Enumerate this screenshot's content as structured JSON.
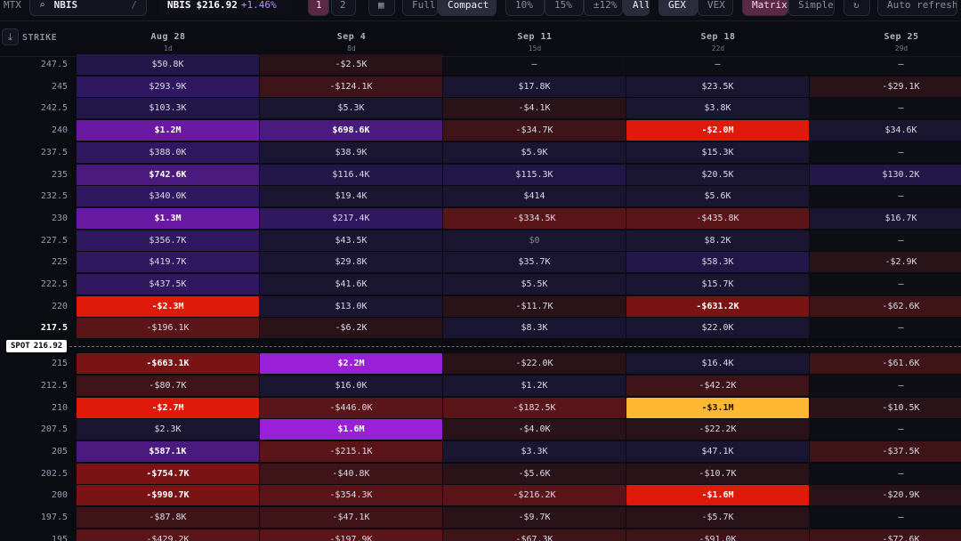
{
  "toolbar": {
    "left_label": "MTX",
    "search_value": "NBIS",
    "search_shortcut": "/",
    "ticker": "NBIS",
    "price": "$216.92",
    "change": "+1.46%",
    "page_buttons": [
      "1",
      "2"
    ],
    "view_modes": [
      "Full",
      "Compact"
    ],
    "active_view": "Compact",
    "range_options": [
      "10%",
      "15%",
      "±12%",
      "All"
    ],
    "active_range": "All",
    "metric_options": [
      "GEX",
      "VEX"
    ],
    "active_metric": "GEX",
    "display_options": [
      "Matrix",
      "Simple"
    ],
    "active_display": "Matrix",
    "auto_refresh_label": "Auto refresh"
  },
  "header": {
    "strike_label": "STRIKE",
    "expiries": [
      {
        "date": "Aug 28",
        "dte": "1d"
      },
      {
        "date": "Sep 4",
        "dte": "8d"
      },
      {
        "date": "Sep 11",
        "dte": "15d"
      },
      {
        "date": "Sep 18",
        "dte": "22d"
      },
      {
        "date": "Sep 25",
        "dte": "29d"
      }
    ]
  },
  "spot": {
    "label": "SPOT",
    "value": "216.92"
  },
  "colors": {
    "bg": "#0b0b12",
    "positive": "#8a2be2",
    "negative": "#e01a0a",
    "extreme_negative": "#ffb833"
  },
  "matrix": {
    "rows": [
      {
        "strike": "247.5",
        "cells": [
          "$50.8K",
          "-$2.5K",
          "—",
          "—",
          "—"
        ]
      },
      {
        "strike": "245",
        "cells": [
          "$293.9K",
          "-$124.1K",
          "$17.8K",
          "$23.5K",
          "-$29.1K"
        ]
      },
      {
        "strike": "242.5",
        "cells": [
          "$103.3K",
          "$5.3K",
          "-$4.1K",
          "$3.8K",
          "—"
        ]
      },
      {
        "strike": "240",
        "cells": [
          "$1.2M",
          "$698.6K",
          "-$34.7K",
          "-$2.0M",
          "$34.6K"
        ]
      },
      {
        "strike": "237.5",
        "cells": [
          "$388.0K",
          "$38.9K",
          "$5.9K",
          "$15.3K",
          "—"
        ]
      },
      {
        "strike": "235",
        "cells": [
          "$742.6K",
          "$116.4K",
          "$115.3K",
          "$20.5K",
          "$130.2K"
        ]
      },
      {
        "strike": "232.5",
        "cells": [
          "$340.0K",
          "$19.4K",
          "$414",
          "$5.6K",
          "—"
        ]
      },
      {
        "strike": "230",
        "cells": [
          "$1.3M",
          "$217.4K",
          "-$334.5K",
          "-$435.8K",
          "$16.7K"
        ]
      },
      {
        "strike": "227.5",
        "cells": [
          "$356.7K",
          "$43.5K",
          "$0",
          "$8.2K",
          "—"
        ]
      },
      {
        "strike": "225",
        "cells": [
          "$419.7K",
          "$29.8K",
          "$35.7K",
          "$58.3K",
          "-$2.9K"
        ]
      },
      {
        "strike": "222.5",
        "cells": [
          "$437.5K",
          "$41.6K",
          "$5.5K",
          "$15.7K",
          "—"
        ]
      },
      {
        "strike": "220",
        "cells": [
          "-$2.3M",
          "$13.0K",
          "-$11.7K",
          "-$631.2K",
          "-$62.6K"
        ]
      },
      {
        "strike": "217.5",
        "cells": [
          "-$196.1K",
          "-$6.2K",
          "$8.3K",
          "$22.0K",
          "—"
        ]
      },
      {
        "strike": "215",
        "cells": [
          "-$663.1K",
          "$2.2M",
          "-$22.0K",
          "$16.4K",
          "-$61.6K"
        ]
      },
      {
        "strike": "212.5",
        "cells": [
          "-$80.7K",
          "$16.0K",
          "$1.2K",
          "-$42.2K",
          "—"
        ]
      },
      {
        "strike": "210",
        "cells": [
          "-$2.7M",
          "-$446.0K",
          "-$182.5K",
          "-$3.1M",
          "-$10.5K"
        ]
      },
      {
        "strike": "207.5",
        "cells": [
          "$2.3K",
          "$1.6M",
          "-$4.0K",
          "-$22.2K",
          "—"
        ]
      },
      {
        "strike": "205",
        "cells": [
          "$587.1K",
          "-$215.1K",
          "$3.3K",
          "$47.1K",
          "-$37.5K"
        ]
      },
      {
        "strike": "202.5",
        "cells": [
          "-$754.7K",
          "-$40.8K",
          "-$5.6K",
          "-$10.7K",
          "—"
        ]
      },
      {
        "strike": "200",
        "cells": [
          "-$990.7K",
          "-$354.3K",
          "-$216.2K",
          "-$1.6M",
          "-$20.9K"
        ]
      },
      {
        "strike": "197.5",
        "cells": [
          "-$87.8K",
          "-$47.1K",
          "-$9.7K",
          "-$5.7K",
          "—"
        ]
      },
      {
        "strike": "195",
        "cells": [
          "-$429.2K",
          "-$197.9K",
          "-$67.3K",
          "-$91.0K",
          "-$72.6K"
        ]
      }
    ],
    "highlighted_strike": "217.5"
  }
}
